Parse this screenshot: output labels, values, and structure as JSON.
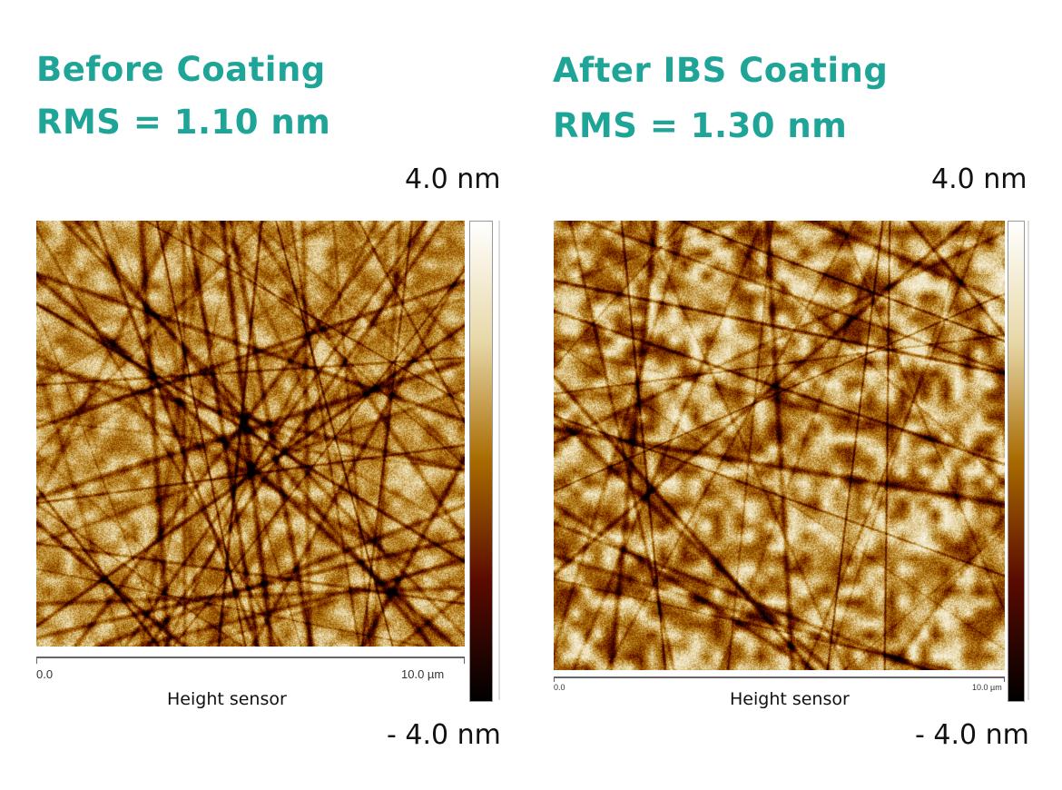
{
  "panels": [
    {
      "title": "Before Coating",
      "rms": "RMS = 1.10 nm",
      "scale_max": "4.0 nm",
      "scale_min": "- 4.0 nm",
      "axis_start": "0.0",
      "axis_end": "10.0 µm",
      "channel": "Height sensor"
    },
    {
      "title": "After IBS Coating",
      "rms": "RMS = 1.30 nm",
      "scale_max": "4.0 nm",
      "scale_min": "- 4.0 nm",
      "axis_start": "0.0",
      "axis_end": "10.0 µm",
      "channel": "Height sensor"
    }
  ],
  "colors": {
    "title": "#1ea597",
    "colormap": [
      "#000000",
      "#5a0a00",
      "#a86a00",
      "#e8d8a8",
      "#ffffff"
    ]
  }
}
